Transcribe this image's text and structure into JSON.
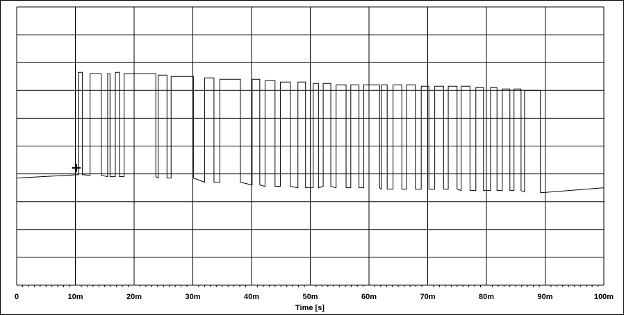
{
  "chart_data": {
    "type": "line",
    "x_label": "Time [s]",
    "color": "#000000",
    "xlim": [
      0,
      0.1
    ],
    "xticks": [
      0,
      {
        "value": 0.01,
        "label": "10m"
      },
      {
        "value": 0.02,
        "label": "20m"
      },
      {
        "value": 0.03,
        "label": "30m"
      },
      {
        "value": 0.04,
        "label": "40m"
      },
      {
        "value": 0.05,
        "label": "50m"
      },
      {
        "value": 0.06,
        "label": "60m"
      },
      {
        "value": 0.07,
        "label": "70m"
      },
      {
        "value": 0.08,
        "label": "80m"
      },
      {
        "value": 0.09,
        "label": "90m"
      },
      {
        "value": 0.1,
        "label": "100m"
      }
    ],
    "ylim": [
      0,
      10
    ],
    "yticks": [
      0,
      1,
      2,
      3,
      4,
      5,
      6,
      7,
      8,
      9,
      10
    ],
    "grid": true,
    "x": [
      0,
      0.0105,
      0.0105,
      0.0112,
      0.0112,
      0.0125,
      0.0125,
      0.0144,
      0.0144,
      0.0155,
      0.0155,
      0.0159,
      0.0159,
      0.0168,
      0.0168,
      0.0175,
      0.0175,
      0.0183,
      0.0183,
      0.0237,
      0.0237,
      0.0241,
      0.0241,
      0.0256,
      0.0256,
      0.0263,
      0.0263,
      0.0301,
      0.0301,
      0.032,
      0.032,
      0.0336,
      0.0336,
      0.0346,
      0.0346,
      0.0381,
      0.0381,
      0.0401,
      0.0401,
      0.0414,
      0.0414,
      0.0423,
      0.0423,
      0.044,
      0.044,
      0.0449,
      0.0449,
      0.0466,
      0.0466,
      0.0479,
      0.0479,
      0.0492,
      0.0492,
      0.0505,
      0.0505,
      0.0514,
      0.0514,
      0.0522,
      0.0522,
      0.0535,
      0.0535,
      0.0544,
      0.0544,
      0.0561,
      0.0561,
      0.0569,
      0.0569,
      0.0583,
      0.0583,
      0.0591,
      0.0591,
      0.0618,
      0.0618,
      0.0621,
      0.0621,
      0.0631,
      0.0631,
      0.0641,
      0.0641,
      0.0656,
      0.0656,
      0.0664,
      0.0664,
      0.0679,
      0.0679,
      0.0689,
      0.0689,
      0.0702,
      0.0702,
      0.0712,
      0.0712,
      0.0727,
      0.0727,
      0.0735,
      0.0735,
      0.075,
      0.075,
      0.0757,
      0.0757,
      0.0772,
      0.0772,
      0.0782,
      0.0782,
      0.0795,
      0.0795,
      0.0807,
      0.0807,
      0.0818,
      0.0818,
      0.0827,
      0.0827,
      0.084,
      0.084,
      0.0847,
      0.0847,
      0.0859,
      0.0859,
      0.0865,
      0.0865,
      0.0892,
      0.0892,
      0.1
    ],
    "values": [
      3.85,
      3.97,
      7.65,
      7.65,
      3.97,
      3.95,
      7.6,
      7.6,
      3.95,
      3.9,
      7.6,
      7.6,
      3.9,
      3.9,
      7.65,
      7.65,
      3.9,
      3.9,
      7.6,
      7.6,
      3.9,
      3.85,
      7.55,
      7.55,
      3.85,
      3.85,
      7.5,
      7.5,
      3.85,
      3.7,
      7.45,
      7.45,
      3.7,
      3.7,
      7.4,
      7.4,
      3.7,
      3.6,
      7.4,
      7.4,
      3.6,
      3.55,
      7.35,
      7.35,
      3.55,
      3.55,
      7.3,
      7.3,
      3.55,
      3.5,
      7.3,
      7.3,
      3.5,
      3.5,
      7.25,
      7.25,
      3.5,
      3.55,
      7.25,
      7.25,
      3.55,
      3.5,
      7.2,
      7.2,
      3.5,
      3.5,
      7.2,
      7.2,
      3.5,
      3.5,
      7.2,
      7.2,
      3.5,
      3.45,
      7.2,
      7.2,
      3.45,
      3.45,
      7.2,
      7.2,
      3.45,
      3.45,
      7.2,
      7.2,
      3.45,
      3.45,
      7.15,
      7.15,
      3.45,
      3.45,
      7.15,
      7.15,
      3.45,
      3.45,
      7.15,
      7.15,
      3.45,
      3.4,
      7.15,
      7.15,
      3.4,
      3.4,
      7.1,
      7.1,
      3.4,
      3.4,
      7.1,
      7.1,
      3.4,
      3.4,
      7.05,
      7.05,
      3.4,
      3.4,
      7.05,
      7.05,
      3.4,
      3.35,
      7.0,
      7.0,
      3.32,
      3.5
    ]
  }
}
